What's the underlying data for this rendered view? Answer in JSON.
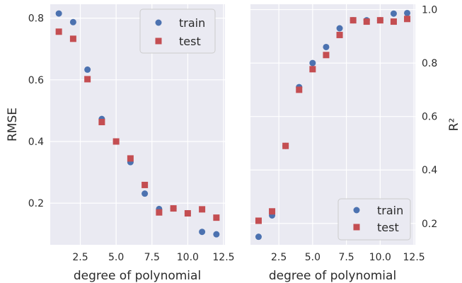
{
  "chart_data": [
    {
      "type": "scatter",
      "title": "",
      "xlabel": "degree of polynomial",
      "ylabel": "RMSE",
      "xlim": [
        0.4,
        12.6
      ],
      "ylim": [
        0.065,
        0.845
      ],
      "xticks": [
        2.5,
        5.0,
        7.5,
        10.0,
        12.5
      ],
      "xtick_labels": [
        "2.5",
        "5.0",
        "7.5",
        "10.0",
        "12.5"
      ],
      "yticks": [
        0.2,
        0.4,
        0.6,
        0.8
      ],
      "ytick_labels": [
        "0.2",
        "0.4",
        "0.6",
        "0.8"
      ],
      "y_axis_side": "left",
      "grid": true,
      "legend_position": "upper right",
      "series": [
        {
          "name": "train",
          "marker": "circle",
          "color": "#4c72b0",
          "x": [
            1,
            2,
            3,
            4,
            5,
            6,
            7,
            8,
            9,
            10,
            11,
            12
          ],
          "y": [
            0.815,
            0.787,
            0.633,
            0.473,
            0.4,
            0.333,
            0.231,
            0.181,
            0.183,
            0.167,
            0.107,
            0.099
          ]
        },
        {
          "name": "test",
          "marker": "square",
          "color": "#c44e52",
          "x": [
            1,
            2,
            3,
            4,
            5,
            6,
            7,
            8,
            9,
            10,
            11,
            12
          ],
          "y": [
            0.756,
            0.733,
            0.602,
            0.463,
            0.4,
            0.345,
            0.259,
            0.17,
            0.183,
            0.167,
            0.18,
            0.153
          ]
        }
      ]
    },
    {
      "type": "scatter",
      "title": "",
      "xlabel": "degree of polynomial",
      "ylabel": "R²",
      "xlim": [
        0.4,
        12.6
      ],
      "ylim": [
        0.12,
        1.02
      ],
      "xticks": [
        2.5,
        5.0,
        7.5,
        10.0,
        12.5
      ],
      "xtick_labels": [
        "2.5",
        "5.0",
        "7.5",
        "10.0",
        "12.5"
      ],
      "yticks": [
        0.2,
        0.4,
        0.6,
        0.8,
        1.0
      ],
      "ytick_labels": [
        "0.2",
        "0.4",
        "0.6",
        "0.8",
        "1.0"
      ],
      "y_axis_side": "right",
      "grid": true,
      "legend_position": "lower right",
      "series": [
        {
          "name": "train",
          "marker": "circle",
          "color": "#4c72b0",
          "x": [
            1,
            2,
            3,
            4,
            5,
            6,
            7,
            8,
            9,
            10,
            11,
            12
          ],
          "y": [
            0.15,
            0.23,
            0.49,
            0.71,
            0.8,
            0.86,
            0.93,
            0.96,
            0.96,
            0.96,
            0.985,
            0.987
          ]
        },
        {
          "name": "test",
          "marker": "square",
          "color": "#c44e52",
          "x": [
            1,
            2,
            3,
            4,
            5,
            6,
            7,
            8,
            9,
            10,
            11,
            12
          ],
          "y": [
            0.21,
            0.245,
            0.49,
            0.7,
            0.777,
            0.83,
            0.905,
            0.96,
            0.955,
            0.96,
            0.955,
            0.965
          ]
        }
      ]
    }
  ]
}
